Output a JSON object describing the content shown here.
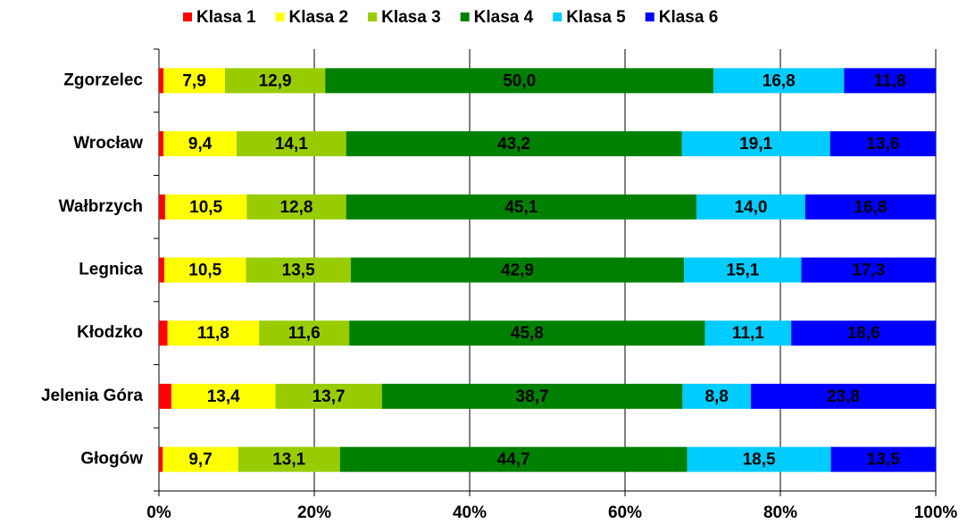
{
  "chart_data": {
    "type": "stacked-bar-horizontal",
    "categories": [
      "Zgorzelec",
      "Wrocław",
      "Wałbrzych",
      "Legnica",
      "Kłodzko",
      "Jelenia Góra",
      "Głogów"
    ],
    "series": [
      {
        "name": "Klasa 1",
        "color": "#ff0000",
        "values": [
          0.6,
          0.6,
          0.8,
          0.7,
          1.1,
          1.6,
          0.5
        ]
      },
      {
        "name": "Klasa 2",
        "color": "#ffff00",
        "values": [
          7.9,
          9.4,
          10.5,
          10.5,
          11.8,
          13.4,
          9.7
        ],
        "value_labels": [
          "7,9",
          "9,4",
          "10,5",
          "10,5",
          "11,8",
          "13,4",
          "9,7"
        ]
      },
      {
        "name": "Klasa 3",
        "color": "#99cc00",
        "values": [
          12.9,
          14.1,
          12.8,
          13.5,
          11.6,
          13.7,
          13.1
        ],
        "value_labels": [
          "12,9",
          "14,1",
          "12,8",
          "13,5",
          "11,6",
          "13,7",
          "13,1"
        ]
      },
      {
        "name": "Klasa 4",
        "color": "#008000",
        "values": [
          50.0,
          43.2,
          45.1,
          42.9,
          45.8,
          38.7,
          44.7
        ],
        "value_labels": [
          "50,0",
          "43,2",
          "45,1",
          "42,9",
          "45,8",
          "38,7",
          "44,7"
        ]
      },
      {
        "name": "Klasa 5",
        "color": "#00ccff",
        "values": [
          16.8,
          19.1,
          14.0,
          15.1,
          11.1,
          8.8,
          18.5
        ],
        "value_labels": [
          "16,8",
          "19,1",
          "14,0",
          "15,1",
          "11,1",
          "8,8",
          "18,5"
        ]
      },
      {
        "name": "Klasa 6",
        "color": "#0000ff",
        "values": [
          11.8,
          13.6,
          16.8,
          17.3,
          18.6,
          23.8,
          13.5
        ],
        "value_labels": [
          "11,8",
          "13,6",
          "16,8",
          "17,3",
          "18,6",
          "23,8",
          "13,5"
        ]
      }
    ],
    "xlim": [
      0,
      100
    ],
    "xticks": [
      {
        "value": 0,
        "label": "0%"
      },
      {
        "value": 20,
        "label": "20%"
      },
      {
        "value": 40,
        "label": "40%"
      },
      {
        "value": 60,
        "label": "60%"
      },
      {
        "value": 80,
        "label": "80%"
      },
      {
        "value": 100,
        "label": "100%"
      }
    ],
    "grid": true,
    "legend": "top"
  }
}
